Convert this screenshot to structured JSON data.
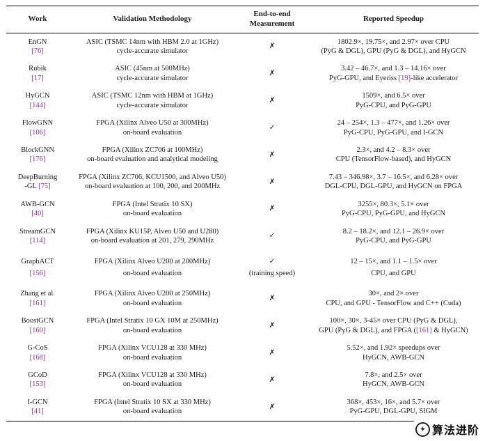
{
  "colors": {
    "ref": "#8d2f92",
    "text": "#1a1a1a"
  },
  "watermark": {
    "text": "算法进阶",
    "icon": "watermark-logo"
  },
  "table": {
    "headers": [
      {
        "lines": [
          "Work"
        ]
      },
      {
        "lines": [
          "Validation Methodology"
        ]
      },
      {
        "lines": [
          "End-to-end",
          "Measurement"
        ]
      },
      {
        "lines": [
          "Reported Speedup"
        ]
      }
    ],
    "rows": [
      {
        "work_lines": [
          "EnGN",
          "[76]"
        ],
        "validation_lines": [
          "ASIC (TSMC 14nm with HBM 2.0 at 1GHz)",
          "cycle-accurate simulator"
        ],
        "e2e": {
          "symbol": "✗"
        },
        "speedup_lines": [
          "1802.9×, 19.75×, and 2.97× over CPU",
          "(PyG & DGL), GPU (PyG & DGL), and HyGCN"
        ]
      },
      {
        "work_lines": [
          "Rubik",
          "[17]"
        ],
        "validation_lines": [
          "ASIC (45nm at 500MHz)",
          "cycle-accurate simulator"
        ],
        "e2e": {
          "symbol": "✗"
        },
        "speedup_lines": [
          "3.42 – 46.7×, and 1.3 – 14.16× over",
          "PyG-GPU, and Eyeriss [19]-like accelerator"
        ]
      },
      {
        "work_lines": [
          "HyGCN",
          "[144]"
        ],
        "validation_lines": [
          "ASIC (TSMC 12nm with HBM at 1GHz)",
          "cycle-accurate simulator"
        ],
        "e2e": {
          "symbol": "✗"
        },
        "speedup_lines": [
          "1509×, and 6.5× over",
          "PyG-CPU, and PyG-GPU"
        ]
      },
      {
        "work_lines": [
          "FlowGNN",
          "[106]"
        ],
        "validation_lines": [
          "FPGA (Xilinx Alveo U50 at 300MHz)",
          "on-board evaluation"
        ],
        "e2e": {
          "symbol": "✓"
        },
        "speedup_lines": [
          "24 – 254×, 1.3 – 477×, and 1.26× over",
          "PyG-CPU, PyG-GPU, and I-GCN"
        ]
      },
      {
        "work_lines": [
          "BlockGNN",
          "[176]"
        ],
        "validation_lines": [
          "FPGA (Xilinx ZC706 at 100MHz)",
          "on-board evaluation and analytical modeling"
        ],
        "e2e": {
          "symbol": "✗"
        },
        "speedup_lines": [
          "2.3×, and 4.2 – 8.3× over",
          "CPU (TensorFlow-based), and HyGCN"
        ]
      },
      {
        "work_lines": [
          "DeepBurning",
          "-GL [75]"
        ],
        "validation_lines": [
          "FPGA (Xilinx ZC706, KCU1500, and Alveo U50)",
          "on-board evaluation at 100, 200, and 200MHz"
        ],
        "e2e": {
          "symbol": "✗"
        },
        "speedup_lines": [
          "7.43 – 346.98×, 3.7 – 16.5×, and 6.28× over",
          "DGL-CPU, DGL-GPU, and HyGCN on FPGA"
        ]
      },
      {
        "work_lines": [
          "AWB-GCN",
          "[40]"
        ],
        "validation_lines": [
          "FPGA (Intel Stratix 10 SX)",
          "on-board evaluation"
        ],
        "e2e": {
          "symbol": "✗"
        },
        "speedup_lines": [
          "3255×, 80.3×, 5.1× over",
          "PyG-CPU, PyG-GPU, and HyGCN"
        ]
      },
      {
        "work_lines": [
          "StreamGCN",
          "[114]"
        ],
        "validation_lines": [
          "FPGA (Xilinx KU15P, Alveo U50 and U280)",
          "on-board evaluation at 201, 279, 290MHz"
        ],
        "e2e": {
          "symbol": "✓"
        },
        "speedup_lines": [
          "8.2 – 18.2×, and 12.1 – 26.9× over",
          "PyG-CPU, and PyG-GPU"
        ]
      },
      {
        "work_lines": [
          "GraphACT",
          "[156]"
        ],
        "validation_lines": [
          "FPGA (Xilinx Alveo U200 at 200MHz)",
          "on-board evaluation"
        ],
        "e2e": {
          "symbol": "✓",
          "note": "(training speed)"
        },
        "speedup_lines": [
          "12 – 15×, and 1.1 – 1.5× over",
          "CPU, and GPU"
        ]
      },
      {
        "work_lines": [
          "Zhang et al.",
          "[161]"
        ],
        "validation_lines": [
          "FPGA (Xilinx Alveo U200 at 250MHz)",
          "on-board evaluation"
        ],
        "e2e": {
          "symbol": "✗"
        },
        "speedup_lines": [
          "30×, and 2× over",
          "CPU, and GPU - TensorFlow and C++ (Cuda)"
        ]
      },
      {
        "work_lines": [
          "BoostGCN",
          "[160]"
        ],
        "validation_lines": [
          "FPGA (Intel Stratix 10 GX 10M at 250MHz)",
          "on-board evaluation"
        ],
        "e2e": {
          "symbol": "✗"
        },
        "speedup_lines": [
          "100×, 30×, 3-45× over CPU (PyG & DGL),",
          "GPU (PyG & DGL), and FPGA ([161] & HyGCN)"
        ]
      },
      {
        "work_lines": [
          "G-CoS",
          "[168]"
        ],
        "validation_lines": [
          "FPGA (Xilinx VCU128 at 330 MHz)",
          "on-board evaluation"
        ],
        "e2e": {
          "symbol": "✗"
        },
        "speedup_lines": [
          "5.52×, and 1.92× speedups over",
          "HyGCN, AWB-GCN"
        ]
      },
      {
        "work_lines": [
          "GCoD",
          "[153]"
        ],
        "validation_lines": [
          "FPGA (Xilinx VCU128 at 330 MHz)",
          "on-board evaluation"
        ],
        "e2e": {
          "symbol": "✗"
        },
        "speedup_lines": [
          "7.8×, and 2.5× over",
          "HyGCN, AWB-GCN"
        ]
      },
      {
        "work_lines": [
          "I-GCN",
          "[41]"
        ],
        "validation_lines": [
          "FPGA (Intel Stratix 10 SX at 330 MHz)",
          "on-board evaluation"
        ],
        "e2e": {
          "symbol": "✗"
        },
        "speedup_lines": [
          "368×, 453×, 16×, and 5.7× over",
          "PyG-GPU, DGL-GPU, SIGM"
        ]
      }
    ]
  }
}
